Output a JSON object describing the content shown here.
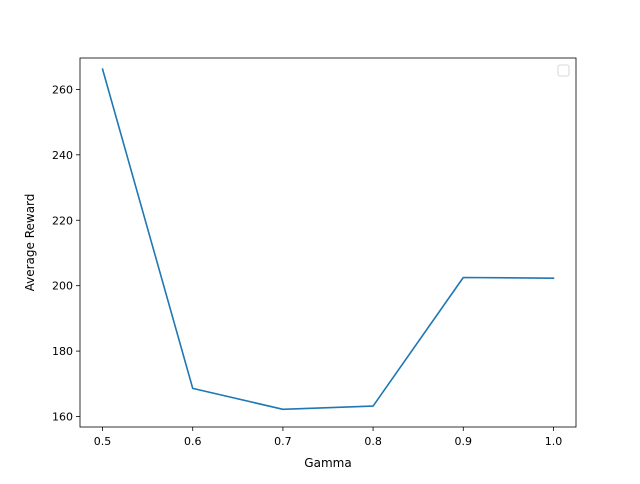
{
  "chart_data": {
    "type": "line",
    "xlabel": "Gamma",
    "ylabel": "Average Reward",
    "x": [
      0.5,
      0.6,
      0.7,
      0.8,
      0.9,
      1.0
    ],
    "series": [
      {
        "values": [
          266.2,
          168.6,
          162.2,
          163.2,
          202.5,
          202.3
        ],
        "color": "#1f77b4"
      }
    ],
    "xlim": [
      0.475,
      1.025
    ],
    "ylim": [
      156.8,
      269.6
    ],
    "xticks": [
      0.5,
      0.6,
      0.7,
      0.8,
      0.9,
      1.0
    ],
    "xtick_labels": [
      "0.5",
      "0.6",
      "0.7",
      "0.8",
      "0.9",
      "1.0"
    ],
    "yticks": [
      160,
      180,
      200,
      220,
      240,
      260
    ],
    "ytick_labels": [
      "160",
      "180",
      "200",
      "220",
      "240",
      "260"
    ],
    "grid": false,
    "legend": {
      "placement": "top-right",
      "entries": []
    }
  }
}
